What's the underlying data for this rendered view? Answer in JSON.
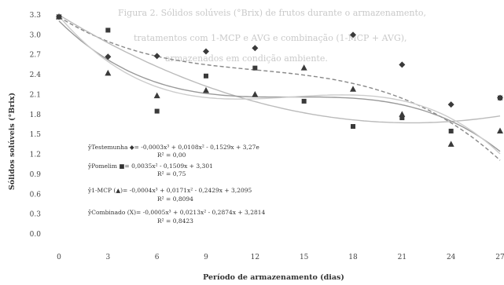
{
  "background_text": {
    "lines": [
      "Figura 2. Sólidos solúveis (°Brix) de frutos durante o armazenamento,",
      "tratamentos com 1-MCP e AVG e combinação (1-MCP + AVG),",
      "armazenados em condição ambiente."
    ]
  },
  "chart_data": {
    "type": "scatter",
    "title": "",
    "xlabel": "Período de armazenamento (dias)",
    "ylabel": "Sólidos solúveis (°Brix)",
    "xlim": [
      0,
      27
    ],
    "ylim": [
      0,
      3.3
    ],
    "x_ticks": [
      0,
      3,
      6,
      9,
      12,
      15,
      18,
      21,
      24,
      27
    ],
    "y_ticks": [
      0,
      0.3,
      0.6,
      0.9,
      1.2,
      1.5,
      1.8,
      2.1,
      2.4,
      2.7,
      3.0,
      3.3
    ],
    "y_tick_labels": [
      "0.0",
      "0.3",
      "0.6",
      "0.9",
      "1.2",
      "1.5",
      "1.8",
      "2.1",
      "2.4",
      "2.7",
      "3.0",
      "3.3"
    ],
    "grid": false,
    "series": [
      {
        "name": "Testemunha",
        "marker": "diamond",
        "x": [
          0,
          3,
          6,
          9,
          12,
          18,
          21,
          24,
          27
        ],
        "y": [
          3.27,
          2.67,
          2.68,
          2.75,
          2.8,
          3.0,
          2.55,
          1.95,
          2.05
        ],
        "fit": {
          "a3": -0.0003,
          "a2": 0.0108,
          "a1": -0.1529,
          "a0": 3.27,
          "style": "dashed",
          "color": "#888888"
        }
      },
      {
        "name": "Pomelim",
        "marker": "square",
        "x": [
          0,
          3,
          6,
          9,
          12,
          15,
          18,
          21,
          24,
          27
        ],
        "y": [
          3.27,
          3.07,
          1.85,
          2.38,
          2.5,
          2.0,
          1.62,
          1.75,
          1.55,
          2.05
        ],
        "fit": {
          "a3": 0,
          "a2": 0.0035,
          "a1": -0.1509,
          "a0": 3.301,
          "style": "solid",
          "color": "#bbbbbb"
        }
      },
      {
        "name": "1-MCP",
        "marker": "triangle",
        "x": [
          0,
          3,
          6,
          9,
          12,
          15,
          18,
          21,
          24,
          27
        ],
        "y": [
          3.27,
          2.42,
          2.08,
          2.16,
          2.1,
          2.5,
          2.18,
          1.8,
          1.35,
          1.55
        ],
        "fit": {
          "a3": -0.0004,
          "a2": 0.0171,
          "a1": -0.2429,
          "a0": 3.2095,
          "style": "solid",
          "color": "#999999"
        }
      },
      {
        "name": "Combinado",
        "marker": "x",
        "x": [
          0
        ],
        "y": [
          3.27
        ],
        "fit": {
          "a3": -0.0005,
          "a2": 0.0213,
          "a1": -0.2874,
          "a0": 3.2814,
          "style": "solid",
          "color": "#cccccc"
        }
      }
    ],
    "equations": [
      {
        "line1": "ŷTestemunha ◆= -0,0003x³ + 0,0108x² - 0,1529x + 3,27e",
        "line2": "R² = 0,00"
      },
      {
        "line1": "ŷPomelim ■= 0,0035x² - 0,1509x + 3,301",
        "line2": "R² = 0,75"
      },
      {
        "line1": "ŷ1-MCP (▲)= -0,0004x³ + 0,0171x² - 0,2429x + 3,2095",
        "line2": "R² = 0,8094"
      },
      {
        "line1": "ŷCombinado (X)= -0,0005x³ + 0,0213x² - 0,2874x + 3,2814",
        "line2": "R² = 0,8423"
      }
    ]
  }
}
